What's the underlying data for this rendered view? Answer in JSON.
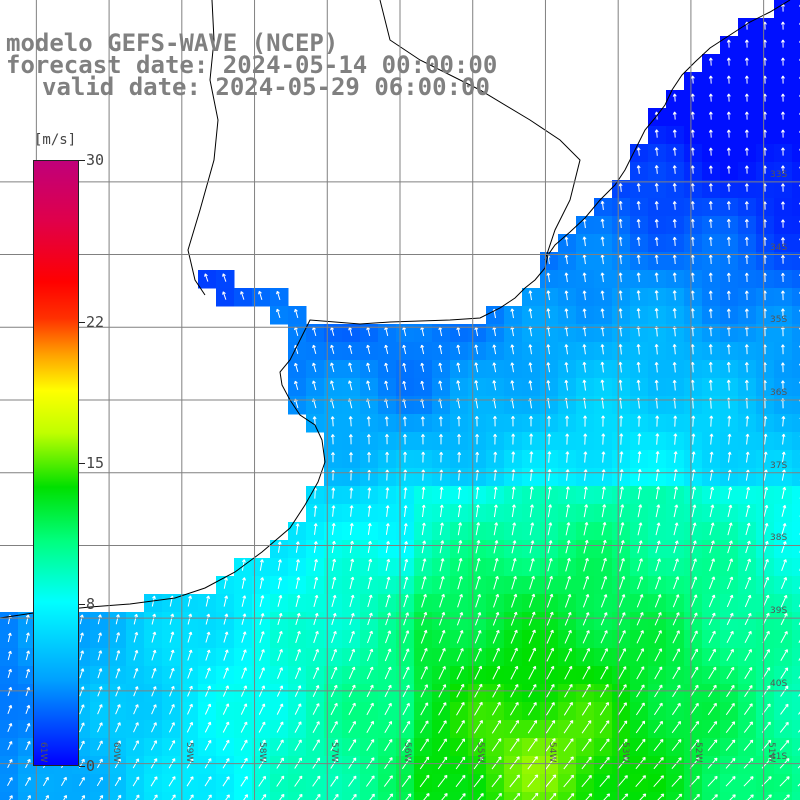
{
  "title": {
    "line1": "modelo GEFS-WAVE (NCEP)",
    "line2": "forecast date: 2024-05-14 00:00:00",
    "line3": "valid date: 2024-05-29 06:00:00"
  },
  "colorbar": {
    "unit": "[m/s]",
    "min": 0,
    "max": 30,
    "ticks": [
      "30",
      "22",
      "15",
      "8",
      "0"
    ],
    "tick_values": [
      30,
      22,
      15,
      8,
      0
    ],
    "colors": {
      "low": "#0000ff",
      "mid": "#00ffff",
      "green": "#00e000",
      "yellow": "#ffff00",
      "red": "#ff0000",
      "high": "#c0007a"
    }
  },
  "map": {
    "lat_labels": [
      "33S",
      "34S",
      "35S",
      "36S",
      "37S",
      "38S",
      "39S",
      "40S",
      "41S"
    ],
    "lat_values": [
      33,
      34,
      35,
      36,
      37,
      38,
      39,
      40,
      41
    ],
    "lon_labels": [
      "61W",
      "60W",
      "59W",
      "58W",
      "57W",
      "56W",
      "55W",
      "54W",
      "53W",
      "52W",
      "51W"
    ],
    "lon_values": [
      -61,
      -60,
      -59,
      -58,
      -57,
      -56,
      -55,
      -54,
      -53,
      -52,
      -51
    ],
    "lat_range": [
      30.5,
      41.5
    ],
    "lon_range": [
      -61.5,
      -50.5
    ],
    "land_color": "#ffffff",
    "grid_color": "#808080",
    "arrow_color": "#ffffff",
    "coast_color": "#000000"
  }
}
